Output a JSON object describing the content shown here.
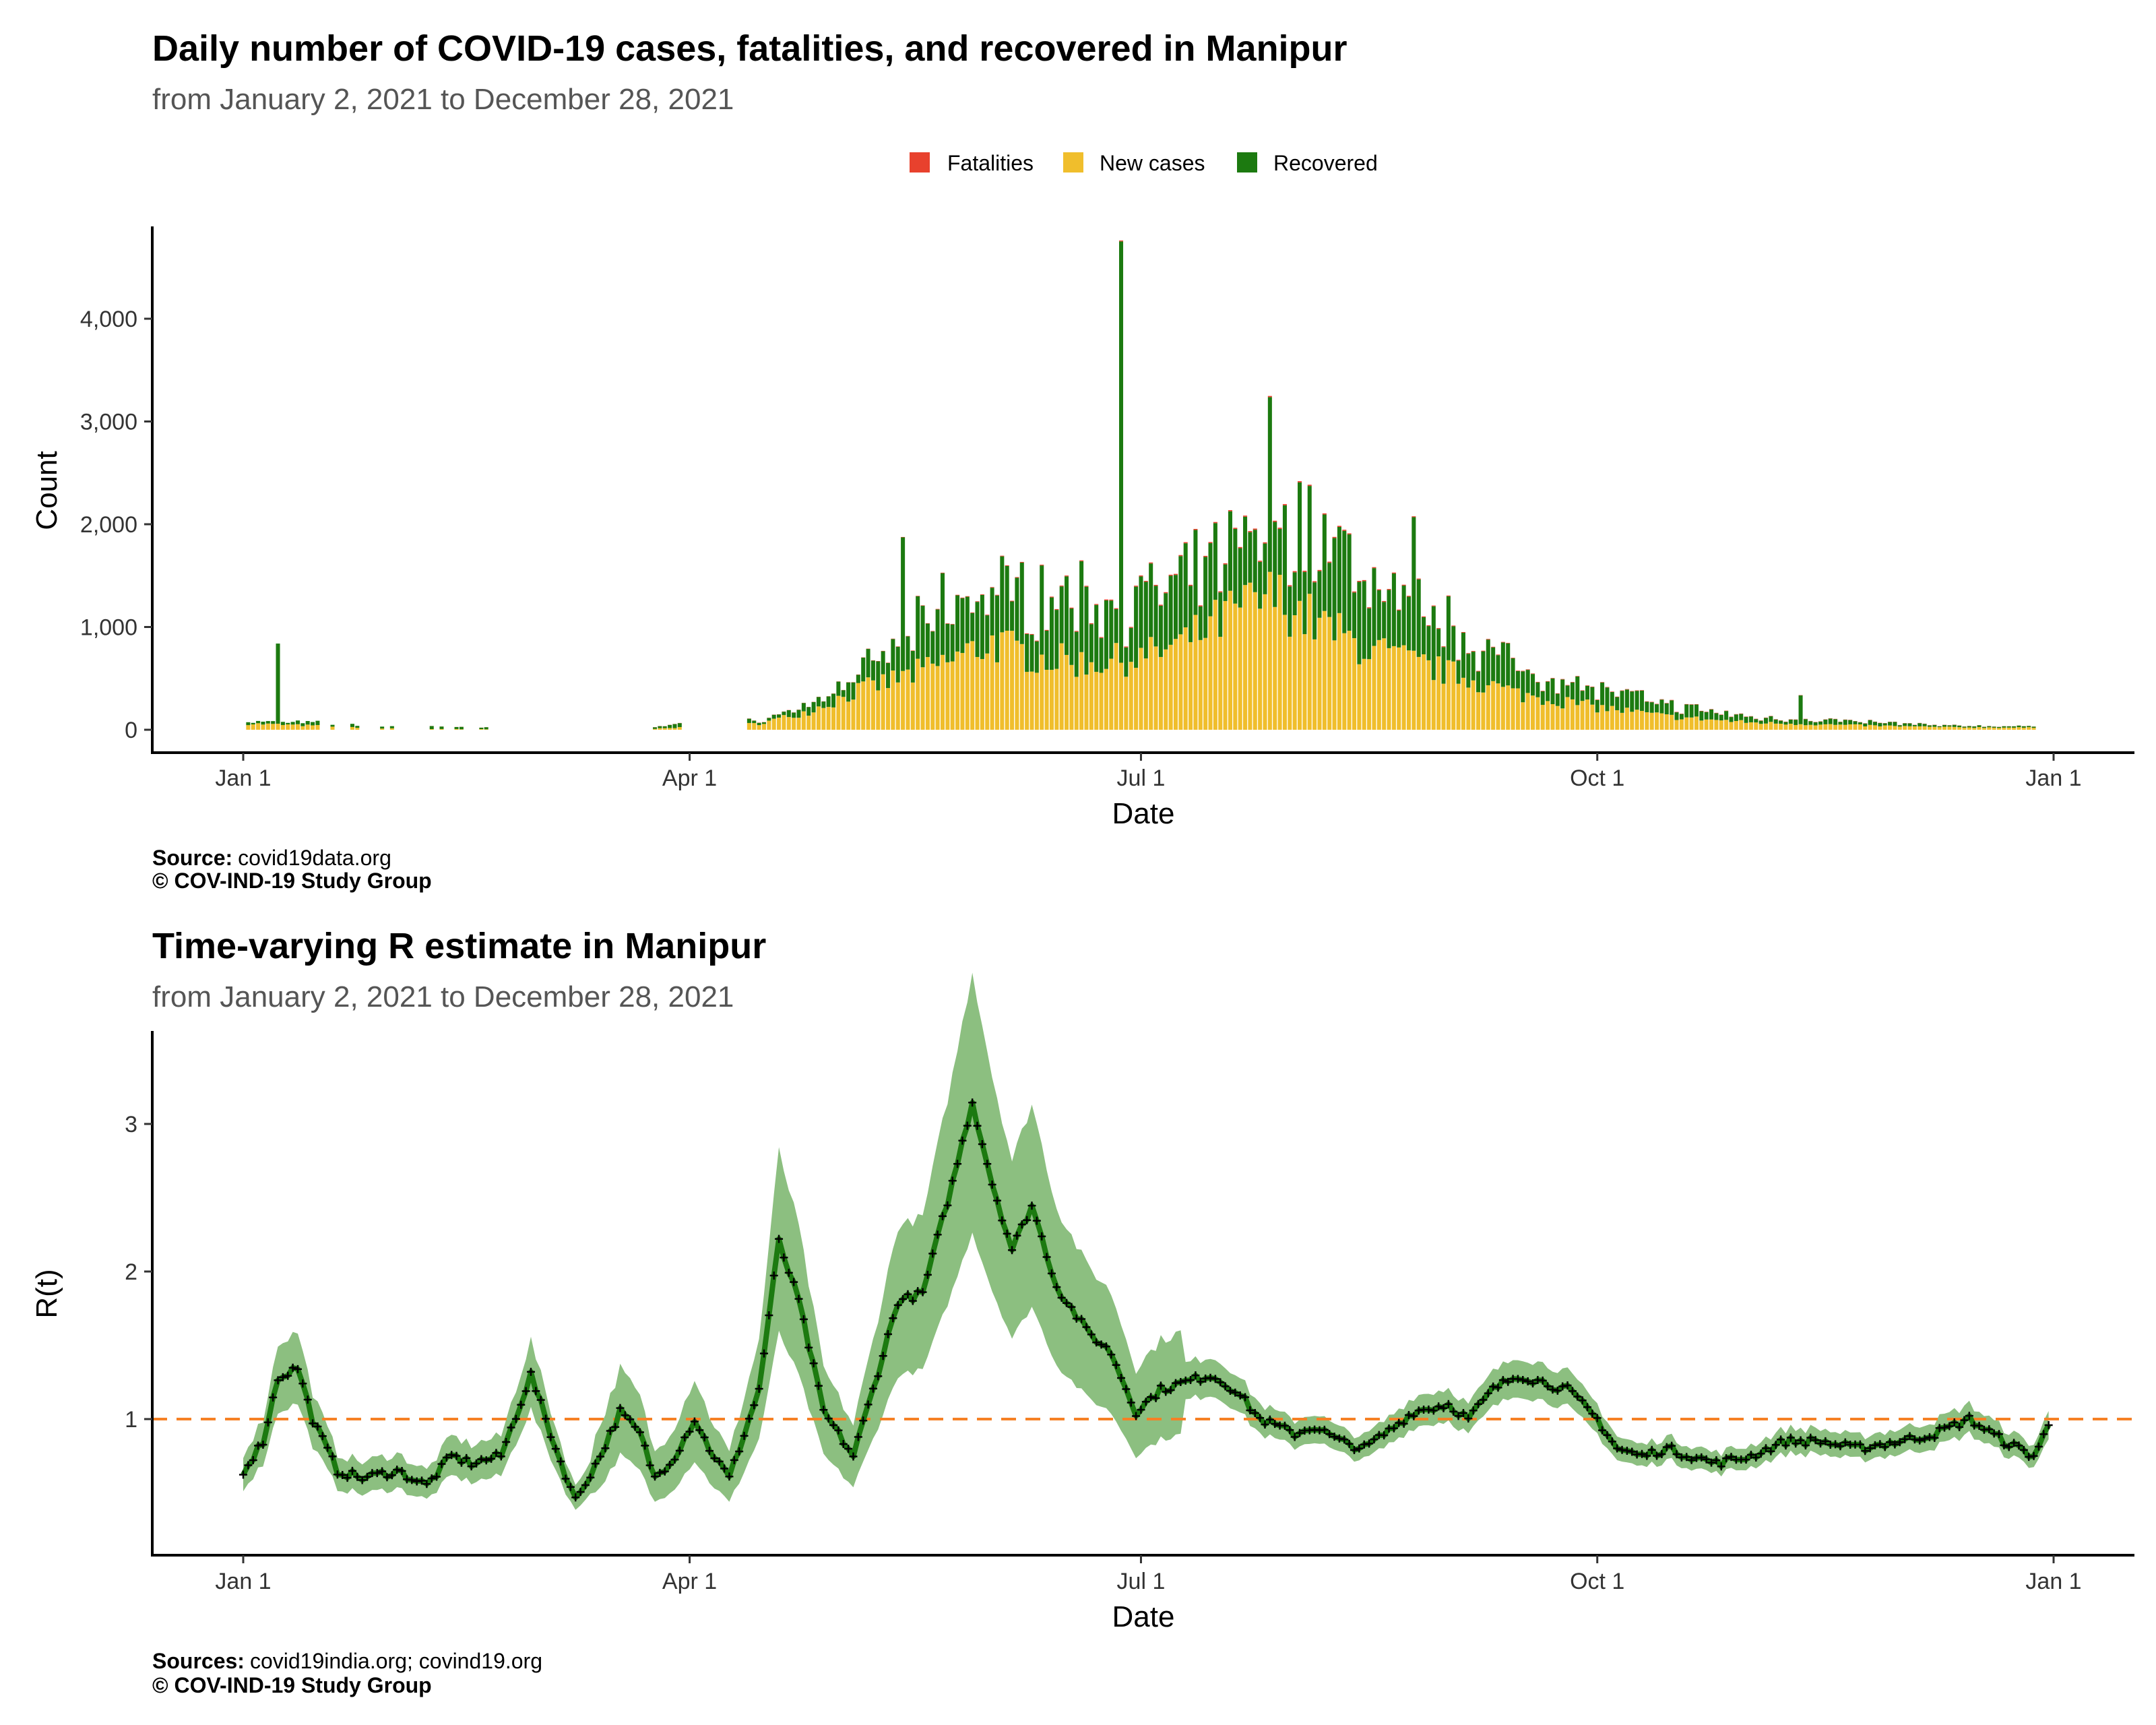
{
  "colors": {
    "fatalities": "#e8412d",
    "new_cases": "#f0be2c",
    "recovered": "#1c7a10",
    "r_line": "#1c7a10",
    "r_band": "#8cbf80",
    "threshold": "#f58025"
  },
  "chart_data": [
    {
      "type": "bar",
      "stacked": true,
      "title": "Daily number of COVID-19 cases, fatalities, and recovered in Manipur",
      "subtitle": "from January  2, 2021 to December 28, 2021",
      "xlabel": "Date",
      "ylabel": "Count",
      "x_ticks": [
        "Jan  1",
        "Apr  1",
        "Jul  1",
        "Oct  1",
        "Jan  1"
      ],
      "y_ticks": [
        "0",
        "1,000",
        "2,000",
        "3,000",
        "4,000"
      ],
      "ylim": [
        0,
        4800
      ],
      "legend": {
        "position": "top",
        "items": [
          "Fatalities",
          "New cases",
          "Recovered"
        ]
      },
      "caption_source_label": "Source:",
      "caption_source": "covid19data.org",
      "caption_copyright": "© COV-IND-19 Study Group",
      "series_keyframes": {
        "new_cases": [
          [
            "2021-01-02",
            60
          ],
          [
            "2021-01-15",
            40
          ],
          [
            "2021-02-01",
            10
          ],
          [
            "2021-02-15",
            5
          ],
          [
            "2021-03-25",
            10
          ],
          [
            "2021-04-15",
            60
          ],
          [
            "2021-04-25",
            180
          ],
          [
            "2021-05-05",
            380
          ],
          [
            "2021-05-20",
            600
          ],
          [
            "2021-06-01",
            850
          ],
          [
            "2021-06-10",
            700
          ],
          [
            "2021-06-20",
            650
          ],
          [
            "2021-07-01",
            700
          ],
          [
            "2021-07-10",
            850
          ],
          [
            "2021-07-20",
            1150
          ],
          [
            "2021-07-28",
            1300
          ],
          [
            "2021-08-05",
            1050
          ],
          [
            "2021-08-15",
            800
          ],
          [
            "2021-08-25",
            650
          ],
          [
            "2021-09-05",
            500
          ],
          [
            "2021-09-15",
            350
          ],
          [
            "2021-10-01",
            220
          ],
          [
            "2021-10-15",
            130
          ],
          [
            "2021-11-01",
            70
          ],
          [
            "2021-11-20",
            45
          ],
          [
            "2021-12-10",
            25
          ],
          [
            "2021-12-28",
            20
          ]
        ],
        "recovered": [
          [
            "2021-01-02",
            20
          ],
          [
            "2021-01-15",
            30
          ],
          [
            "2021-02-01",
            20
          ],
          [
            "2021-04-15",
            30
          ],
          [
            "2021-04-25",
            60
          ],
          [
            "2021-05-05",
            150
          ],
          [
            "2021-05-15",
            350
          ],
          [
            "2021-05-22",
            550
          ],
          [
            "2021-06-01",
            500
          ],
          [
            "2021-06-10",
            600
          ],
          [
            "2021-06-20",
            600
          ],
          [
            "2021-07-01",
            550
          ],
          [
            "2021-07-10",
            550
          ],
          [
            "2021-07-20",
            600
          ],
          [
            "2021-07-28",
            700
          ],
          [
            "2021-08-05",
            900
          ],
          [
            "2021-08-15",
            700
          ],
          [
            "2021-08-25",
            550
          ],
          [
            "2021-09-05",
            400
          ],
          [
            "2021-09-15",
            250
          ],
          [
            "2021-10-01",
            180
          ],
          [
            "2021-10-15",
            110
          ],
          [
            "2021-11-01",
            50
          ],
          [
            "2021-11-20",
            40
          ],
          [
            "2021-12-10",
            15
          ],
          [
            "2021-12-28",
            10
          ]
        ],
        "fatalities": [
          [
            "2021-01-02",
            0
          ],
          [
            "2021-05-01",
            2
          ],
          [
            "2021-06-15",
            8
          ],
          [
            "2021-08-01",
            12
          ],
          [
            "2021-09-15",
            5
          ],
          [
            "2021-12-28",
            1
          ]
        ]
      },
      "gap_ranges": [
        [
          "2021-02-20",
          "2021-03-24"
        ],
        [
          "2021-03-31",
          "2021-04-12"
        ]
      ],
      "spikes": [
        {
          "date": "2021-01-08",
          "recovered": 780
        },
        {
          "date": "2021-05-14",
          "recovered": 1300
        },
        {
          "date": "2021-06-27",
          "recovered": 4100
        },
        {
          "date": "2021-07-27",
          "recovered": 1700
        },
        {
          "date": "2021-08-25",
          "recovered": 1300
        },
        {
          "date": "2021-11-11",
          "recovered": 280
        }
      ]
    },
    {
      "type": "line",
      "title": "Time-varying R estimate in Manipur",
      "subtitle": "from January  2, 2021 to December 28, 2021",
      "xlabel": "Date",
      "ylabel": "R(t)",
      "x_ticks": [
        "Jan  1",
        "Apr  1",
        "Jul  1",
        "Oct  1",
        "Jan  1"
      ],
      "y_ticks": [
        "1",
        "2",
        "3"
      ],
      "ylim": [
        0.15,
        3.6
      ],
      "reference_line": 1,
      "caption_source_label": "Sources:",
      "caption_source": "covid19india.org; covind19.org",
      "caption_copyright": "© COV-IND-19 Study Group",
      "r_keyframes": [
        [
          "2021-01-01",
          0.65
        ],
        [
          "2021-01-05",
          0.85
        ],
        [
          "2021-01-08",
          1.28
        ],
        [
          "2021-01-12",
          1.35
        ],
        [
          "2021-01-15",
          1.0
        ],
        [
          "2021-01-20",
          0.65
        ],
        [
          "2021-01-25",
          0.6
        ],
        [
          "2021-02-01",
          0.65
        ],
        [
          "2021-02-07",
          0.55
        ],
        [
          "2021-02-12",
          0.75
        ],
        [
          "2021-02-16",
          0.7
        ],
        [
          "2021-02-22",
          0.75
        ],
        [
          "2021-02-28",
          1.3
        ],
        [
          "2021-03-05",
          0.8
        ],
        [
          "2021-03-09",
          0.45
        ],
        [
          "2021-03-14",
          0.75
        ],
        [
          "2021-03-18",
          1.05
        ],
        [
          "2021-03-22",
          0.9
        ],
        [
          "2021-03-25",
          0.6
        ],
        [
          "2021-03-29",
          0.75
        ],
        [
          "2021-04-02",
          1.0
        ],
        [
          "2021-04-05",
          0.8
        ],
        [
          "2021-04-09",
          0.6
        ],
        [
          "2021-04-15",
          1.2
        ],
        [
          "2021-04-19",
          2.2
        ],
        [
          "2021-04-23",
          1.8
        ],
        [
          "2021-04-28",
          1.05
        ],
        [
          "2021-05-04",
          0.75
        ],
        [
          "2021-05-08",
          1.2
        ],
        [
          "2021-05-13",
          1.8
        ],
        [
          "2021-05-18",
          1.85
        ],
        [
          "2021-05-24",
          2.6
        ],
        [
          "2021-05-28",
          3.15
        ],
        [
          "2021-06-01",
          2.6
        ],
        [
          "2021-06-05",
          2.15
        ],
        [
          "2021-06-09",
          2.45
        ],
        [
          "2021-06-14",
          1.9
        ],
        [
          "2021-06-20",
          1.6
        ],
        [
          "2021-06-25",
          1.45
        ],
        [
          "2021-06-30",
          1.05
        ],
        [
          "2021-07-05",
          1.2
        ],
        [
          "2021-07-10",
          1.25
        ],
        [
          "2021-07-15",
          1.3
        ],
        [
          "2021-07-20",
          1.2
        ],
        [
          "2021-07-25",
          1.0
        ],
        [
          "2021-08-01",
          0.9
        ],
        [
          "2021-08-05",
          0.95
        ],
        [
          "2021-08-10",
          0.85
        ],
        [
          "2021-08-15",
          0.8
        ],
        [
          "2021-08-20",
          0.92
        ],
        [
          "2021-08-25",
          1.05
        ],
        [
          "2021-09-01",
          1.1
        ],
        [
          "2021-09-05",
          1.0
        ],
        [
          "2021-09-10",
          1.2
        ],
        [
          "2021-09-15",
          1.3
        ],
        [
          "2021-09-20",
          1.25
        ],
        [
          "2021-09-25",
          1.2
        ],
        [
          "2021-10-01",
          1.0
        ],
        [
          "2021-10-05",
          0.8
        ],
        [
          "2021-10-10",
          0.75
        ],
        [
          "2021-10-15",
          0.8
        ],
        [
          "2021-10-20",
          0.75
        ],
        [
          "2021-10-25",
          0.7
        ],
        [
          "2021-11-01",
          0.75
        ],
        [
          "2021-11-08",
          0.85
        ],
        [
          "2021-11-15",
          0.85
        ],
        [
          "2021-11-22",
          0.8
        ],
        [
          "2021-12-01",
          0.85
        ],
        [
          "2021-12-08",
          0.9
        ],
        [
          "2021-12-15",
          1.0
        ],
        [
          "2021-12-22",
          0.85
        ],
        [
          "2021-12-28",
          0.75
        ],
        [
          "2021-12-31",
          0.95
        ]
      ]
    }
  ]
}
